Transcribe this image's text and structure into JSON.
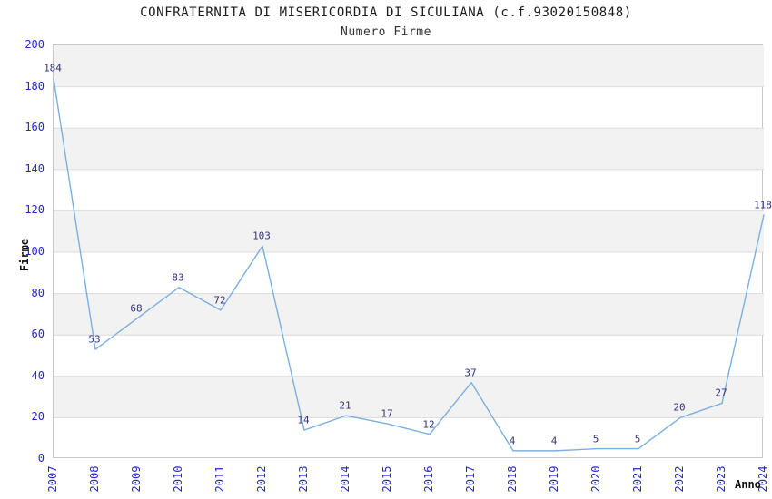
{
  "header": {
    "title": "CONFRATERNITA DI MISERICORDIA DI SICULIANA (c.f.93020150848)",
    "subtitle": "Numero Firme"
  },
  "axes": {
    "y_label": "Firme",
    "x_label": "Anno",
    "y_ticks": [
      0,
      20,
      40,
      60,
      80,
      100,
      120,
      140,
      160,
      180,
      200
    ]
  },
  "chart_data": {
    "type": "line",
    "title": "CONFRATERNITA DI MISERICORDIA DI SICULIANA (c.f.93020150848)",
    "subtitle": "Numero Firme",
    "xlabel": "Anno",
    "ylabel": "Firme",
    "categories": [
      "2007",
      "2008",
      "2009",
      "2010",
      "2011",
      "2012",
      "2013",
      "2014",
      "2015",
      "2016",
      "2017",
      "2018",
      "2019",
      "2020",
      "2021",
      "2022",
      "2023",
      "2024"
    ],
    "values": [
      184,
      53,
      68,
      83,
      72,
      103,
      14,
      21,
      17,
      12,
      37,
      4,
      4,
      5,
      5,
      20,
      27,
      118
    ],
    "ylim": [
      0,
      200
    ],
    "y_tick_step": 20,
    "grid": true,
    "legend_position": "none",
    "colors": {
      "line": "#7cafe0",
      "band": "#f2f2f2",
      "gridline": "#dcdcdc",
      "plot_border": "#c8c8c8",
      "tick_label": "#2626d4",
      "point_label": "#333380",
      "title_text": "#1c1c1c"
    }
  }
}
